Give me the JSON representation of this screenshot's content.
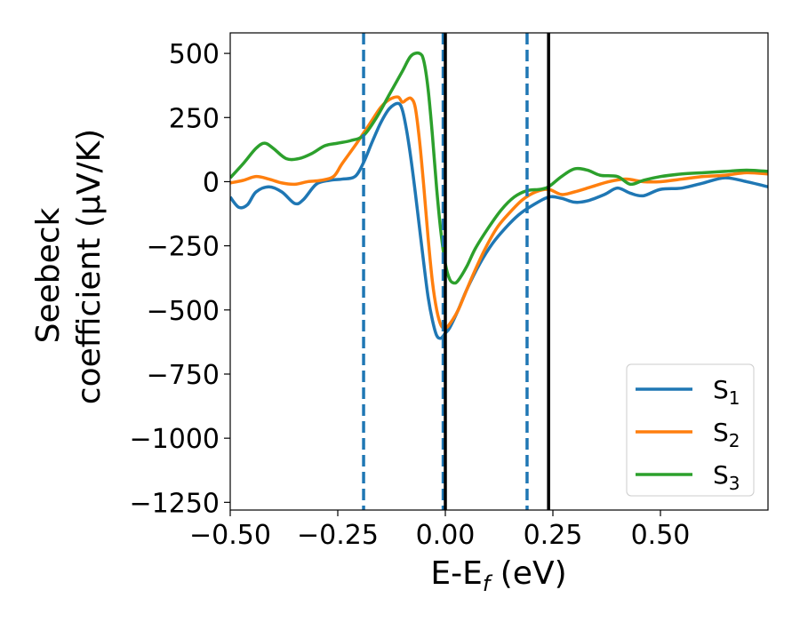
{
  "chart_data": {
    "type": "line",
    "xlabel": "E-E",
    "xlabel_sub": "f",
    "xlabel_unit": " (eV)",
    "ylabel_line1": "Seebeck",
    "ylabel_line2": "coefficient  (μV/K)",
    "xlim": [
      -0.5,
      0.75
    ],
    "ylim": [
      -1280,
      580
    ],
    "xticks": [
      -0.5,
      -0.25,
      0.0,
      0.25,
      0.5
    ],
    "xtick_labels": [
      "−0.50",
      "−0.25",
      "0.00",
      "0.25",
      "0.50"
    ],
    "yticks": [
      500,
      250,
      0,
      -250,
      -500,
      -750,
      -1000,
      -1250
    ],
    "ytick_labels": [
      "500",
      "250",
      "0",
      "−250",
      "−500",
      "−750",
      "−1000",
      "−1250"
    ],
    "grid": false,
    "legend_position": "bottom-right",
    "vlines": [
      {
        "x": -0.19,
        "style": "dashed",
        "color": "#1f77b4"
      },
      {
        "x": -0.005,
        "style": "dashed",
        "color": "#1f77b4"
      },
      {
        "x": 0.19,
        "style": "dashed",
        "color": "#1f77b4"
      },
      {
        "x": 0.0,
        "style": "solid",
        "color": "#000000"
      },
      {
        "x": 0.24,
        "style": "solid",
        "color": "#000000"
      }
    ],
    "series": [
      {
        "name": "S",
        "subscript": "1",
        "color": "#1f77b4",
        "x": [
          -0.5,
          -0.48,
          -0.46,
          -0.44,
          -0.41,
          -0.38,
          -0.35,
          -0.33,
          -0.3,
          -0.27,
          -0.24,
          -0.21,
          -0.19,
          -0.17,
          -0.15,
          -0.13,
          -0.11,
          -0.1,
          -0.09,
          -0.08,
          -0.07,
          -0.06,
          -0.05,
          -0.04,
          -0.03,
          -0.02,
          -0.01,
          0.0,
          0.01,
          0.03,
          0.05,
          0.08,
          0.11,
          0.14,
          0.17,
          0.2,
          0.24,
          0.27,
          0.3,
          0.33,
          0.37,
          0.4,
          0.43,
          0.46,
          0.5,
          0.55,
          0.6,
          0.65,
          0.7,
          0.75
        ],
        "y": [
          -60,
          -100,
          -90,
          -40,
          -20,
          -40,
          -85,
          -70,
          -10,
          5,
          10,
          20,
          75,
          155,
          230,
          285,
          305,
          280,
          200,
          90,
          -40,
          -180,
          -320,
          -450,
          -540,
          -600,
          -610,
          -590,
          -570,
          -500,
          -420,
          -320,
          -240,
          -180,
          -130,
          -95,
          -60,
          -65,
          -80,
          -75,
          -50,
          -25,
          -45,
          -55,
          -30,
          -25,
          -5,
          15,
          0,
          -20
        ]
      },
      {
        "name": "S",
        "subscript": "2",
        "color": "#ff7f0e",
        "x": [
          -0.5,
          -0.47,
          -0.44,
          -0.41,
          -0.38,
          -0.35,
          -0.32,
          -0.29,
          -0.26,
          -0.24,
          -0.21,
          -0.19,
          -0.17,
          -0.15,
          -0.13,
          -0.11,
          -0.1,
          -0.09,
          -0.08,
          -0.07,
          -0.06,
          -0.05,
          -0.04,
          -0.03,
          -0.02,
          -0.01,
          0.0,
          0.01,
          0.03,
          0.06,
          0.09,
          0.12,
          0.15,
          0.18,
          0.21,
          0.24,
          0.27,
          0.3,
          0.34,
          0.38,
          0.42,
          0.46,
          0.5,
          0.55,
          0.6,
          0.65,
          0.7,
          0.75
        ],
        "y": [
          -5,
          5,
          20,
          10,
          -5,
          -10,
          0,
          5,
          20,
          70,
          140,
          190,
          240,
          290,
          320,
          330,
          310,
          320,
          325,
          290,
          160,
          -20,
          -220,
          -390,
          -500,
          -560,
          -570,
          -555,
          -500,
          -380,
          -270,
          -180,
          -120,
          -70,
          -40,
          -30,
          -50,
          -40,
          -20,
          0,
          10,
          0,
          0,
          10,
          20,
          25,
          35,
          30
        ]
      },
      {
        "name": "S",
        "subscript": "3",
        "color": "#2ca02c",
        "x": [
          -0.5,
          -0.47,
          -0.44,
          -0.42,
          -0.4,
          -0.37,
          -0.34,
          -0.31,
          -0.28,
          -0.25,
          -0.22,
          -0.19,
          -0.16,
          -0.13,
          -0.1,
          -0.08,
          -0.06,
          -0.05,
          -0.04,
          -0.03,
          -0.02,
          -0.01,
          0.0,
          0.01,
          0.02,
          0.03,
          0.05,
          0.07,
          0.1,
          0.13,
          0.16,
          0.19,
          0.22,
          0.24,
          0.27,
          0.3,
          0.33,
          0.36,
          0.4,
          0.43,
          0.46,
          0.5,
          0.55,
          0.6,
          0.65,
          0.7,
          0.75
        ],
        "y": [
          15,
          70,
          130,
          150,
          130,
          90,
          90,
          110,
          140,
          150,
          160,
          180,
          250,
          340,
          430,
          490,
          500,
          470,
          360,
          180,
          -30,
          -200,
          -320,
          -380,
          -395,
          -385,
          -330,
          -260,
          -180,
          -110,
          -60,
          -35,
          -30,
          -20,
          20,
          50,
          45,
          25,
          20,
          -10,
          5,
          20,
          30,
          35,
          40,
          45,
          40
        ]
      }
    ]
  }
}
